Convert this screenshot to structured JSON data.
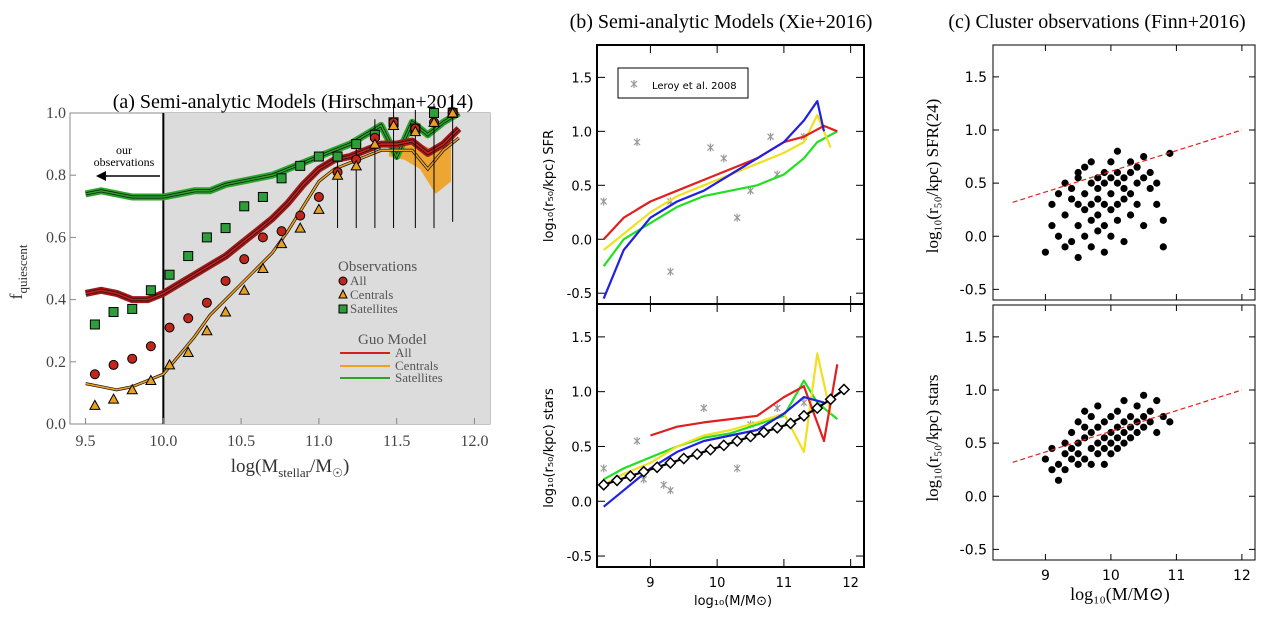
{
  "chart_data": [
    {
      "panel": "a",
      "type": "line",
      "title": "(a) Semi-analytic Models (Hirschman+2014)",
      "xlabel_main": "log(M",
      "xlabel_sub": "stellar",
      "xlabel_mid": "/M",
      "xlabel_sun": "☉",
      "xlabel_end": ")",
      "ylabel_main": "f",
      "ylabel_sub": "quiescent",
      "xlim": [
        9.4,
        12.1
      ],
      "ylim": [
        0.0,
        1.0
      ],
      "xticks": [
        "9.5",
        "10.0",
        "10.5",
        "11.0",
        "11.5",
        "12.0"
      ],
      "yticks": [
        "0.0",
        "0.2",
        "0.4",
        "0.6",
        "0.8",
        "1.0"
      ],
      "shaded_from_x": 10.0,
      "annotation_lines": [
        "our",
        "observations"
      ],
      "legend_obs_title": "Observations",
      "legend_obs": [
        {
          "name": "All",
          "marker": "circle",
          "color": "#c0271c"
        },
        {
          "name": "Centrals",
          "marker": "triangle",
          "color": "#e8a020"
        },
        {
          "name": "Satellites",
          "marker": "square",
          "color": "#2e9e3a"
        }
      ],
      "legend_model_title": "Guo Model",
      "legend_model": [
        {
          "name": "All",
          "color": "#d41f1f"
        },
        {
          "name": "Centrals",
          "color": "#f0a020"
        },
        {
          "name": "Satellites",
          "color": "#2ba32b"
        }
      ],
      "model_x": [
        9.5,
        9.6,
        9.7,
        9.8,
        9.9,
        10.0,
        10.1,
        10.2,
        10.3,
        10.4,
        10.5,
        10.6,
        10.7,
        10.8,
        10.9,
        11.0,
        11.1,
        11.2,
        11.3,
        11.4,
        11.5,
        11.6,
        11.7,
        11.8,
        11.9
      ],
      "model_all": [
        0.42,
        0.43,
        0.42,
        0.4,
        0.4,
        0.42,
        0.45,
        0.48,
        0.51,
        0.54,
        0.58,
        0.62,
        0.66,
        0.71,
        0.77,
        0.82,
        0.85,
        0.86,
        0.88,
        0.9,
        0.9,
        0.91,
        0.87,
        0.9,
        0.95
      ],
      "model_centrals": [
        0.13,
        0.12,
        0.11,
        0.12,
        0.14,
        0.16,
        0.22,
        0.28,
        0.35,
        0.4,
        0.45,
        0.5,
        0.55,
        0.62,
        0.7,
        0.78,
        0.82,
        0.84,
        0.86,
        0.88,
        0.88,
        0.88,
        0.82,
        0.88,
        0.92
      ],
      "model_satellites": [
        0.74,
        0.75,
        0.74,
        0.73,
        0.73,
        0.73,
        0.74,
        0.75,
        0.75,
        0.77,
        0.78,
        0.79,
        0.8,
        0.82,
        0.84,
        0.86,
        0.88,
        0.9,
        0.93,
        0.96,
        0.86,
        0.97,
        0.93,
        0.97,
        1.0
      ],
      "obs_x": [
        9.56,
        9.68,
        9.8,
        9.92,
        10.04,
        10.16,
        10.28,
        10.4,
        10.52,
        10.64,
        10.76,
        10.88,
        11.0,
        11.12,
        11.24,
        11.36,
        11.48,
        11.62,
        11.74,
        11.86
      ],
      "obs_all": [
        0.16,
        0.19,
        0.21,
        0.25,
        0.31,
        0.34,
        0.39,
        0.46,
        0.53,
        0.6,
        0.62,
        0.67,
        0.73,
        0.81,
        0.85,
        0.92,
        0.97,
        0.95,
        0.97,
        1.0
      ],
      "obs_centrals": [
        0.06,
        0.08,
        0.11,
        0.14,
        0.19,
        0.23,
        0.3,
        0.36,
        0.43,
        0.5,
        0.58,
        0.63,
        0.69,
        0.8,
        0.83,
        0.9,
        0.96,
        0.94,
        0.97,
        1.0
      ],
      "obs_satellites": [
        0.32,
        0.36,
        0.37,
        0.43,
        0.48,
        0.54,
        0.6,
        0.63,
        0.7,
        0.73,
        0.79,
        0.83,
        0.86,
        0.86,
        0.9,
        0.93,
        0.97,
        0.95,
        1.0,
        1.0
      ]
    },
    {
      "panel": "b",
      "type": "line",
      "title": "(b) Semi-analytic Models (Xie+2016)",
      "xlabel": "log₁₀(M/M⊙)",
      "xlim": [
        8.2,
        12.2
      ],
      "ylim": [
        -0.6,
        1.8
      ],
      "xticks": [
        "9",
        "10",
        "11",
        "12"
      ],
      "yticks": [
        "-0.5",
        "0.0",
        "0.5",
        "1.0",
        "1.5"
      ],
      "top_ylabel": "log₁₀(r₅₀/kpc)   SFR",
      "bottom_ylabel": "log₁₀(r₅₀/kpc)   stars",
      "legend": "Leroy et al. 2008",
      "series_colors": {
        "blue": "#2020e0",
        "red": "#e02020",
        "yellow": "#f0e020",
        "green": "#20e020",
        "black": "#000000"
      },
      "top_points": [
        [
          8.3,
          0.35
        ],
        [
          8.8,
          0.9
        ],
        [
          9.3,
          -0.3
        ],
        [
          9.3,
          0.35
        ],
        [
          9.9,
          0.85
        ],
        [
          10.1,
          0.75
        ],
        [
          10.3,
          0.2
        ],
        [
          10.5,
          0.45
        ],
        [
          10.8,
          0.95
        ],
        [
          10.9,
          0.6
        ],
        [
          11.3,
          0.95
        ]
      ],
      "top_blue": [
        [
          8.3,
          -0.55
        ],
        [
          8.6,
          -0.1
        ],
        [
          9.0,
          0.2
        ],
        [
          9.4,
          0.35
        ],
        [
          9.8,
          0.45
        ],
        [
          10.2,
          0.6
        ],
        [
          10.6,
          0.75
        ],
        [
          11.0,
          0.9
        ],
        [
          11.3,
          1.1
        ],
        [
          11.5,
          1.28
        ],
        [
          11.6,
          1.0
        ]
      ],
      "top_red": [
        [
          8.3,
          0.0
        ],
        [
          8.6,
          0.2
        ],
        [
          9.0,
          0.35
        ],
        [
          9.4,
          0.45
        ],
        [
          9.8,
          0.55
        ],
        [
          10.2,
          0.65
        ],
        [
          10.6,
          0.75
        ],
        [
          11.0,
          0.9
        ],
        [
          11.3,
          0.95
        ],
        [
          11.6,
          1.05
        ],
        [
          11.8,
          1.0
        ]
      ],
      "top_yellow": [
        [
          8.3,
          -0.1
        ],
        [
          8.6,
          0.05
        ],
        [
          9.0,
          0.25
        ],
        [
          9.4,
          0.4
        ],
        [
          9.8,
          0.5
        ],
        [
          10.2,
          0.6
        ],
        [
          10.6,
          0.7
        ],
        [
          11.0,
          0.8
        ],
        [
          11.3,
          0.9
        ],
        [
          11.5,
          1.15
        ],
        [
          11.7,
          0.85
        ]
      ],
      "top_green": [
        [
          8.3,
          -0.25
        ],
        [
          8.6,
          0.0
        ],
        [
          9.0,
          0.15
        ],
        [
          9.4,
          0.3
        ],
        [
          9.8,
          0.4
        ],
        [
          10.2,
          0.45
        ],
        [
          10.6,
          0.5
        ],
        [
          11.0,
          0.6
        ],
        [
          11.3,
          0.75
        ],
        [
          11.5,
          0.9
        ],
        [
          11.8,
          1.0
        ]
      ],
      "bottom_points": [
        [
          8.3,
          0.3
        ],
        [
          8.8,
          0.55
        ],
        [
          8.9,
          0.2
        ],
        [
          9.2,
          0.15
        ],
        [
          9.3,
          0.1
        ],
        [
          9.8,
          0.85
        ],
        [
          10.3,
          0.3
        ],
        [
          10.5,
          0.7
        ],
        [
          10.9,
          0.85
        ],
        [
          11.3,
          0.9
        ]
      ],
      "bottom_blue": [
        [
          8.3,
          -0.05
        ],
        [
          8.6,
          0.1
        ],
        [
          9.0,
          0.3
        ],
        [
          9.4,
          0.45
        ],
        [
          9.8,
          0.55
        ],
        [
          10.2,
          0.6
        ],
        [
          10.6,
          0.65
        ],
        [
          11.0,
          0.8
        ],
        [
          11.3,
          0.95
        ],
        [
          11.6,
          0.9
        ]
      ],
      "bottom_red": [
        [
          9.0,
          0.6
        ],
        [
          9.4,
          0.68
        ],
        [
          9.8,
          0.72
        ],
        [
          10.2,
          0.75
        ],
        [
          10.6,
          0.78
        ],
        [
          11.0,
          0.95
        ],
        [
          11.3,
          1.05
        ],
        [
          11.6,
          0.55
        ],
        [
          11.8,
          1.25
        ]
      ],
      "bottom_yellow": [
        [
          8.3,
          0.15
        ],
        [
          8.6,
          0.25
        ],
        [
          9.0,
          0.35
        ],
        [
          9.4,
          0.5
        ],
        [
          9.8,
          0.6
        ],
        [
          10.2,
          0.65
        ],
        [
          10.6,
          0.72
        ],
        [
          11.0,
          0.8
        ],
        [
          11.3,
          0.45
        ],
        [
          11.5,
          1.35
        ],
        [
          11.7,
          0.8
        ]
      ],
      "bottom_green": [
        [
          8.3,
          0.2
        ],
        [
          8.6,
          0.3
        ],
        [
          9.0,
          0.4
        ],
        [
          9.4,
          0.5
        ],
        [
          9.8,
          0.58
        ],
        [
          10.2,
          0.62
        ],
        [
          10.6,
          0.7
        ],
        [
          11.0,
          0.78
        ],
        [
          11.3,
          1.1
        ],
        [
          11.5,
          0.9
        ],
        [
          11.8,
          0.75
        ]
      ],
      "bottom_black_x": [
        8.3,
        8.5,
        8.7,
        8.9,
        9.1,
        9.3,
        9.5,
        9.7,
        9.9,
        10.1,
        10.3,
        10.5,
        10.7,
        10.9,
        11.1,
        11.3,
        11.5,
        11.7,
        11.9
      ],
      "bottom_black_y": [
        0.15,
        0.19,
        0.23,
        0.27,
        0.31,
        0.35,
        0.39,
        0.43,
        0.47,
        0.51,
        0.55,
        0.59,
        0.63,
        0.67,
        0.71,
        0.78,
        0.85,
        0.93,
        1.02
      ]
    },
    {
      "panel": "c",
      "type": "scatter",
      "title": "(c) Cluster observations (Finn+2016)",
      "xlabel": "log₁₀(M/M⊙)",
      "xlim": [
        8.2,
        12.2
      ],
      "ylim": [
        -0.6,
        1.8
      ],
      "xticks": [
        "9",
        "10",
        "11",
        "12"
      ],
      "yticks": [
        "-0.5",
        "0.0",
        "0.5",
        "1.0",
        "1.5"
      ],
      "top_ylabel": "log₁₀(r₅₀/kpc) SFR(24)",
      "bottom_ylabel": "log₁₀(r₅₀/kpc) stars",
      "fit_top": [
        [
          8.5,
          0.32
        ],
        [
          12.0,
          1.0
        ]
      ],
      "fit_bottom": [
        [
          8.5,
          0.32
        ],
        [
          12.0,
          1.0
        ]
      ],
      "top_points": [
        [
          9.0,
          -0.15
        ],
        [
          9.1,
          0.1
        ],
        [
          9.1,
          0.3
        ],
        [
          9.2,
          0.4
        ],
        [
          9.2,
          0.0
        ],
        [
          9.3,
          -0.1
        ],
        [
          9.3,
          0.5
        ],
        [
          9.3,
          0.2
        ],
        [
          9.4,
          0.35
        ],
        [
          9.4,
          0.45
        ],
        [
          9.4,
          -0.05
        ],
        [
          9.5,
          0.55
        ],
        [
          9.5,
          0.1
        ],
        [
          9.5,
          0.3
        ],
        [
          9.5,
          -0.2
        ],
        [
          9.5,
          0.6
        ],
        [
          9.6,
          0.4
        ],
        [
          9.6,
          0.25
        ],
        [
          9.6,
          0.0
        ],
        [
          9.6,
          0.65
        ],
        [
          9.7,
          0.5
        ],
        [
          9.7,
          0.3
        ],
        [
          9.7,
          0.15
        ],
        [
          9.7,
          -0.1
        ],
        [
          9.7,
          0.7
        ],
        [
          9.8,
          0.45
        ],
        [
          9.8,
          0.55
        ],
        [
          9.8,
          0.2
        ],
        [
          9.8,
          0.05
        ],
        [
          9.8,
          0.35
        ],
        [
          9.9,
          0.5
        ],
        [
          9.9,
          0.6
        ],
        [
          9.9,
          0.3
        ],
        [
          9.9,
          0.1
        ],
        [
          9.9,
          -0.15
        ],
        [
          10.0,
          0.4
        ],
        [
          10.0,
          0.55
        ],
        [
          10.0,
          0.25
        ],
        [
          10.0,
          0.7
        ],
        [
          10.0,
          0.0
        ],
        [
          10.1,
          0.5
        ],
        [
          10.1,
          0.3
        ],
        [
          10.1,
          0.6
        ],
        [
          10.1,
          0.15
        ],
        [
          10.1,
          0.8
        ],
        [
          10.2,
          0.45
        ],
        [
          10.2,
          0.35
        ],
        [
          10.2,
          0.55
        ],
        [
          10.2,
          -0.05
        ],
        [
          10.3,
          0.6
        ],
        [
          10.3,
          0.4
        ],
        [
          10.3,
          0.2
        ],
        [
          10.3,
          0.7
        ],
        [
          10.4,
          0.5
        ],
        [
          10.4,
          0.3
        ],
        [
          10.4,
          0.65
        ],
        [
          10.5,
          0.55
        ],
        [
          10.5,
          0.1
        ],
        [
          10.5,
          0.75
        ],
        [
          10.6,
          0.45
        ],
        [
          10.6,
          0.6
        ],
        [
          10.7,
          0.5
        ],
        [
          10.7,
          0.3
        ],
        [
          10.8,
          -0.1
        ],
        [
          10.8,
          0.15
        ],
        [
          10.9,
          0.78
        ]
      ],
      "bottom_points": [
        [
          9.0,
          0.35
        ],
        [
          9.1,
          0.25
        ],
        [
          9.1,
          0.45
        ],
        [
          9.2,
          0.3
        ],
        [
          9.2,
          0.15
        ],
        [
          9.3,
          0.4
        ],
        [
          9.3,
          0.5
        ],
        [
          9.3,
          0.25
        ],
        [
          9.4,
          0.35
        ],
        [
          9.4,
          0.6
        ],
        [
          9.4,
          0.45
        ],
        [
          9.5,
          0.3
        ],
        [
          9.5,
          0.5
        ],
        [
          9.5,
          0.7
        ],
        [
          9.5,
          0.4
        ],
        [
          9.6,
          0.55
        ],
        [
          9.6,
          0.35
        ],
        [
          9.6,
          0.65
        ],
        [
          9.6,
          0.8
        ],
        [
          9.7,
          0.45
        ],
        [
          9.7,
          0.6
        ],
        [
          9.7,
          0.3
        ],
        [
          9.7,
          0.75
        ],
        [
          9.8,
          0.5
        ],
        [
          9.8,
          0.65
        ],
        [
          9.8,
          0.4
        ],
        [
          9.8,
          0.85
        ],
        [
          9.9,
          0.55
        ],
        [
          9.9,
          0.7
        ],
        [
          9.9,
          0.45
        ],
        [
          9.9,
          0.3
        ],
        [
          10.0,
          0.6
        ],
        [
          10.0,
          0.75
        ],
        [
          10.0,
          0.5
        ],
        [
          10.0,
          0.4
        ],
        [
          10.1,
          0.65
        ],
        [
          10.1,
          0.55
        ],
        [
          10.1,
          0.8
        ],
        [
          10.1,
          0.45
        ],
        [
          10.2,
          0.7
        ],
        [
          10.2,
          0.6
        ],
        [
          10.2,
          0.5
        ],
        [
          10.2,
          0.9
        ],
        [
          10.3,
          0.65
        ],
        [
          10.3,
          0.75
        ],
        [
          10.3,
          0.55
        ],
        [
          10.4,
          0.7
        ],
        [
          10.4,
          0.6
        ],
        [
          10.4,
          0.85
        ],
        [
          10.5,
          0.75
        ],
        [
          10.5,
          0.65
        ],
        [
          10.5,
          0.95
        ],
        [
          10.6,
          0.7
        ],
        [
          10.6,
          0.8
        ],
        [
          10.7,
          0.6
        ],
        [
          10.7,
          0.9
        ],
        [
          10.8,
          0.75
        ],
        [
          10.9,
          0.7
        ]
      ]
    }
  ]
}
